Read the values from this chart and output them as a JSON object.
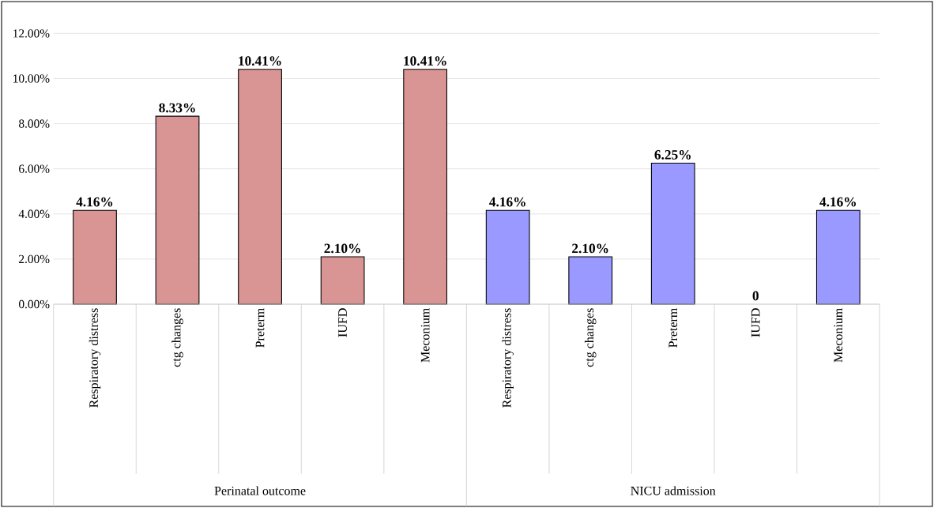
{
  "chart_data": {
    "type": "bar",
    "categories": [
      "Respiratory distress",
      "ctg changes",
      "Preterm",
      "IUFD",
      "Meconium",
      "Respiratory distress",
      "ctg changes",
      "Preterm",
      "IUFD",
      "Meconium"
    ],
    "values": [
      4.16,
      8.33,
      10.41,
      2.1,
      10.41,
      4.16,
      2.1,
      6.25,
      0,
      4.16
    ],
    "colors": [
      "#d99594",
      "#d99594",
      "#d99594",
      "#d99594",
      "#d99594",
      "#9999ff",
      "#9999ff",
      "#9999ff",
      "#9999ff",
      "#9999ff"
    ],
    "value_labels": [
      "4.16%",
      "8.33%",
      "10.41%",
      "2.10%",
      "10.41%",
      "4.16%",
      "2.10%",
      "6.25%",
      "0",
      "4.16%"
    ],
    "ylim": [
      0,
      12
    ],
    "yticks": [
      {
        "value": 0,
        "label": "0.00%"
      },
      {
        "value": 2,
        "label": "2.00%"
      },
      {
        "value": 4,
        "label": "4.00%"
      },
      {
        "value": 6,
        "label": "6.00%"
      },
      {
        "value": 8,
        "label": "8.00%"
      },
      {
        "value": 10,
        "label": "10.00%"
      },
      {
        "value": 12,
        "label": "12.00%"
      }
    ],
    "grid": "y",
    "annotations": [
      "Perinatal outcome",
      "NICU admission"
    ]
  }
}
